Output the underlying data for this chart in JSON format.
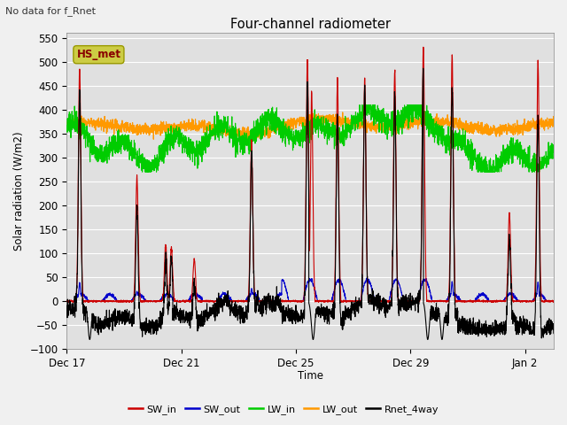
{
  "title": "Four-channel radiometer",
  "top_left_text": "No data for f_Rnet",
  "ylabel": "Solar radiation (W/m2)",
  "xlabel": "Time",
  "ylim": [
    -100,
    560
  ],
  "yticks": [
    -100,
    -50,
    0,
    50,
    100,
    150,
    200,
    250,
    300,
    350,
    400,
    450,
    500,
    550
  ],
  "xtick_labels": [
    "Dec 17",
    "Dec 21",
    "Dec 25",
    "Dec 29",
    "Jan 2"
  ],
  "xtick_positions": [
    0,
    4,
    8,
    12,
    16
  ],
  "fig_bg_color": "#f0f0f0",
  "plot_bg_color": "#e0e0e0",
  "sw_in_color": "#cc0000",
  "sw_out_color": "#0000cc",
  "lw_in_color": "#00cc00",
  "lw_out_color": "#ff9900",
  "rnet_color": "#000000",
  "hs_met_box_color": "#cccc44",
  "hs_met_text_color": "#880000",
  "annotation_box": "HS_met",
  "line_width": 0.8
}
